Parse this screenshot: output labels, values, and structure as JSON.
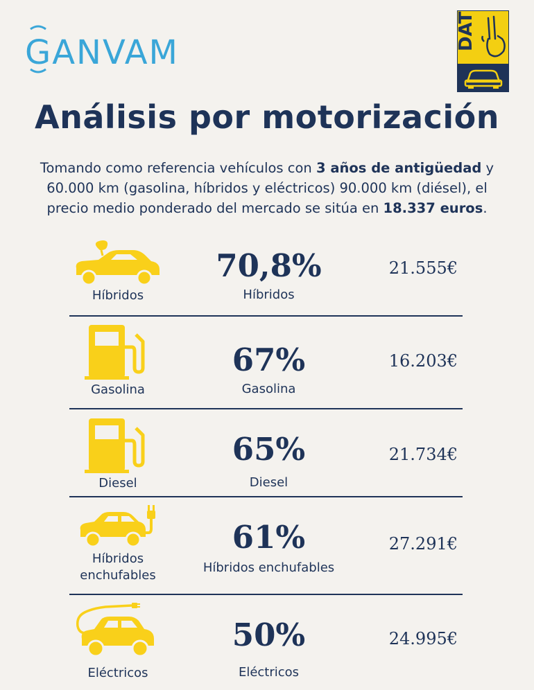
{
  "brand": {
    "ganvam": "GANVAM",
    "dat": "DAT"
  },
  "title": "Análisis por motorización",
  "intro": {
    "p1": "Tomando como referencia vehículos con ",
    "b1": "3 años de antigüedad",
    "p2": " y 60.000 km (gasolina, híbridos y eléctricos) 90.000 km (diésel), el precio medio ponderado del mercado se sitúa en ",
    "b2": "18.337 euros",
    "p3": "."
  },
  "colors": {
    "accent": "#f9d01a",
    "navy": "#1e3358",
    "ganvam_blue": "#3aa6d8",
    "background": "#f4f2ee"
  },
  "rows": [
    {
      "icon": "hybrid-car-leaf-icon",
      "icon_label": "Híbridos",
      "percent": "70,8%",
      "percent_label": "Híbridos",
      "price": "21.555€"
    },
    {
      "icon": "fuel-pump-icon",
      "icon_label": "Gasolina",
      "percent": "67%",
      "percent_label": "Gasolina",
      "price": "16.203€"
    },
    {
      "icon": "fuel-pump-icon",
      "icon_label": "Diesel",
      "percent": "65%",
      "percent_label": "Diesel",
      "price": "21.734€"
    },
    {
      "icon": "plug-in-car-icon",
      "icon_label": "Híbridos enchufables",
      "percent": "61%",
      "percent_label": "Híbridos enchufables",
      "price": "27.291€"
    },
    {
      "icon": "electric-car-icon",
      "icon_label": "Eléctricos",
      "percent": "50%",
      "percent_label": "Eléctricos",
      "price": "24.995€"
    }
  ]
}
